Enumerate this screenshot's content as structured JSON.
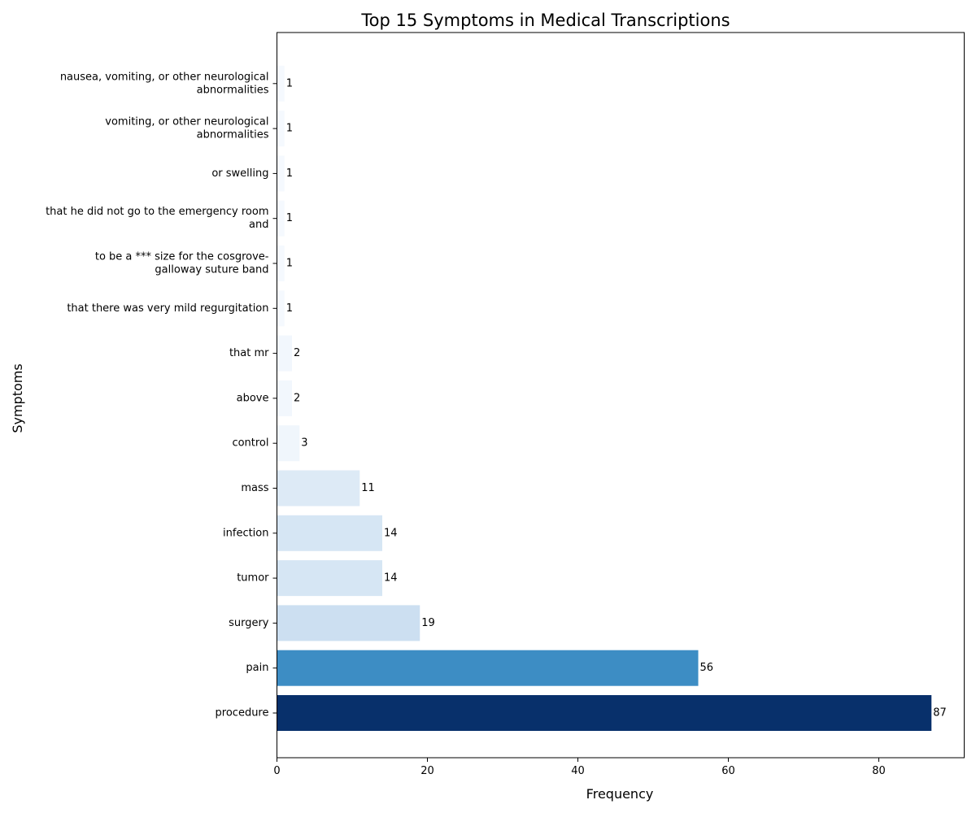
{
  "chart_data": {
    "type": "bar",
    "orientation": "horizontal",
    "title": "Top 15 Symptoms in Medical Transcriptions",
    "xlabel": "Frequency",
    "ylabel": "Symptoms",
    "xlim": [
      0,
      91.35
    ],
    "xticks": [
      0,
      20,
      40,
      60,
      80
    ],
    "grid": false,
    "categories": [
      "procedure",
      "pain",
      "surgery",
      "tumor",
      "infection",
      "mass",
      "control",
      "above",
      "that mr",
      "that there was very mild regurgitation",
      "to be a *** size for the cosgrove-\ngalloway suture band",
      "that he did not go to the emergency room\nand",
      "or swelling",
      "vomiting, or other neurological\nabnormalities",
      "nausea, vomiting, or other neurological\nabnormalities"
    ],
    "values": [
      87,
      56,
      19,
      14,
      14,
      11,
      3,
      2,
      2,
      1,
      1,
      1,
      1,
      1,
      1
    ],
    "colormap": "Blues",
    "colors": [
      "#08306b",
      "#3d8dc4",
      "#ccdff1",
      "#d6e6f4",
      "#d6e6f4",
      "#ddeaf6",
      "#f0f6fc",
      "#f2f7fd",
      "#f2f7fd",
      "#f5f9fe",
      "#f5f9fe",
      "#f5f9fe",
      "#f5f9fe",
      "#f5f9fe",
      "#f5f9fe"
    ]
  }
}
